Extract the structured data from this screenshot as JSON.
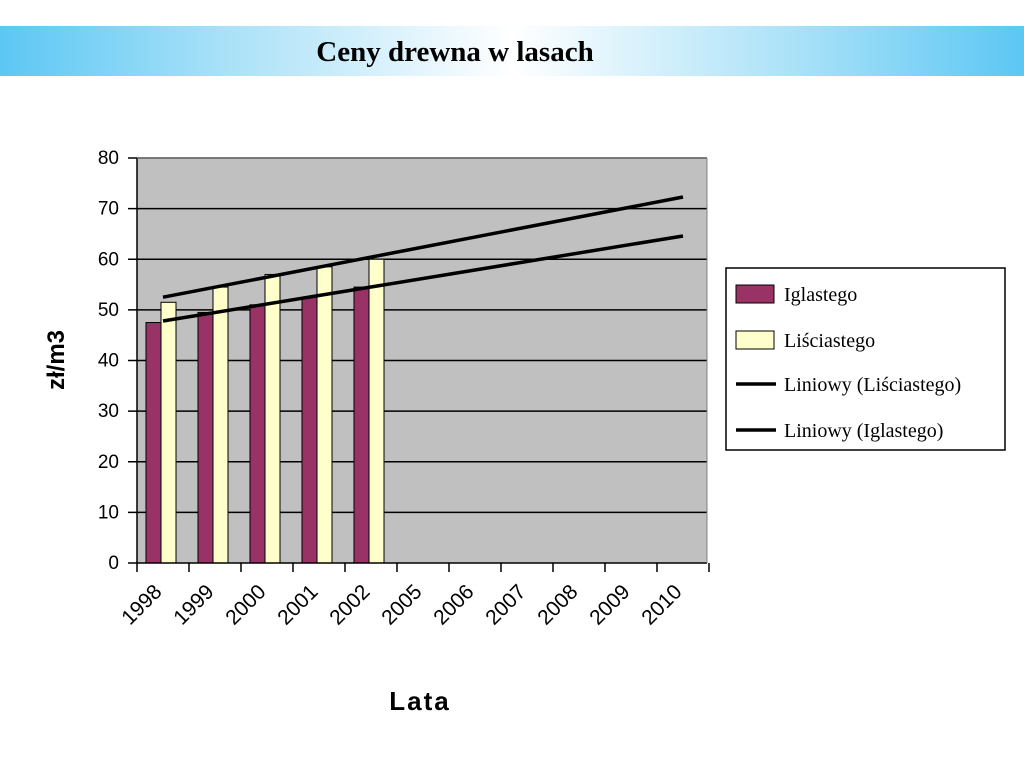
{
  "slide": {
    "title": "Ceny drewna w lasach"
  },
  "chart_data": {
    "type": "bar",
    "title": "",
    "xlabel": "Lata",
    "ylabel": "zł/m3",
    "ylim": [
      0,
      80
    ],
    "yticks": [
      0,
      10,
      20,
      30,
      40,
      50,
      60,
      70,
      80
    ],
    "categories": [
      "1998",
      "1999",
      "2000",
      "2001",
      "2002",
      "2005",
      "2006",
      "2007",
      "2008",
      "2009",
      "2010"
    ],
    "series": [
      {
        "name": "Iglastego",
        "color": "#993366",
        "values": [
          47.5,
          49.5,
          51,
          52.5,
          54.5,
          null,
          null,
          null,
          null,
          null,
          null
        ]
      },
      {
        "name": "Liściastego",
        "color": "#ffffcc",
        "values": [
          51.5,
          54.5,
          57,
          58.5,
          60,
          null,
          null,
          null,
          null,
          null,
          null
        ]
      }
    ],
    "trendlines": [
      {
        "name": "Liniowy (Liściastego)",
        "color": "#000000",
        "from": {
          "x": "1998",
          "y": 52.5
        },
        "to": {
          "x": "2010",
          "y": 72.3
        }
      },
      {
        "name": "Liniowy (Iglastego)",
        "color": "#000000",
        "from": {
          "x": "1998",
          "y": 47.8
        },
        "to": {
          "x": "2010",
          "y": 64.6
        }
      }
    ],
    "plot_background": "#c0c0c0",
    "grid": true,
    "legend": "right"
  }
}
